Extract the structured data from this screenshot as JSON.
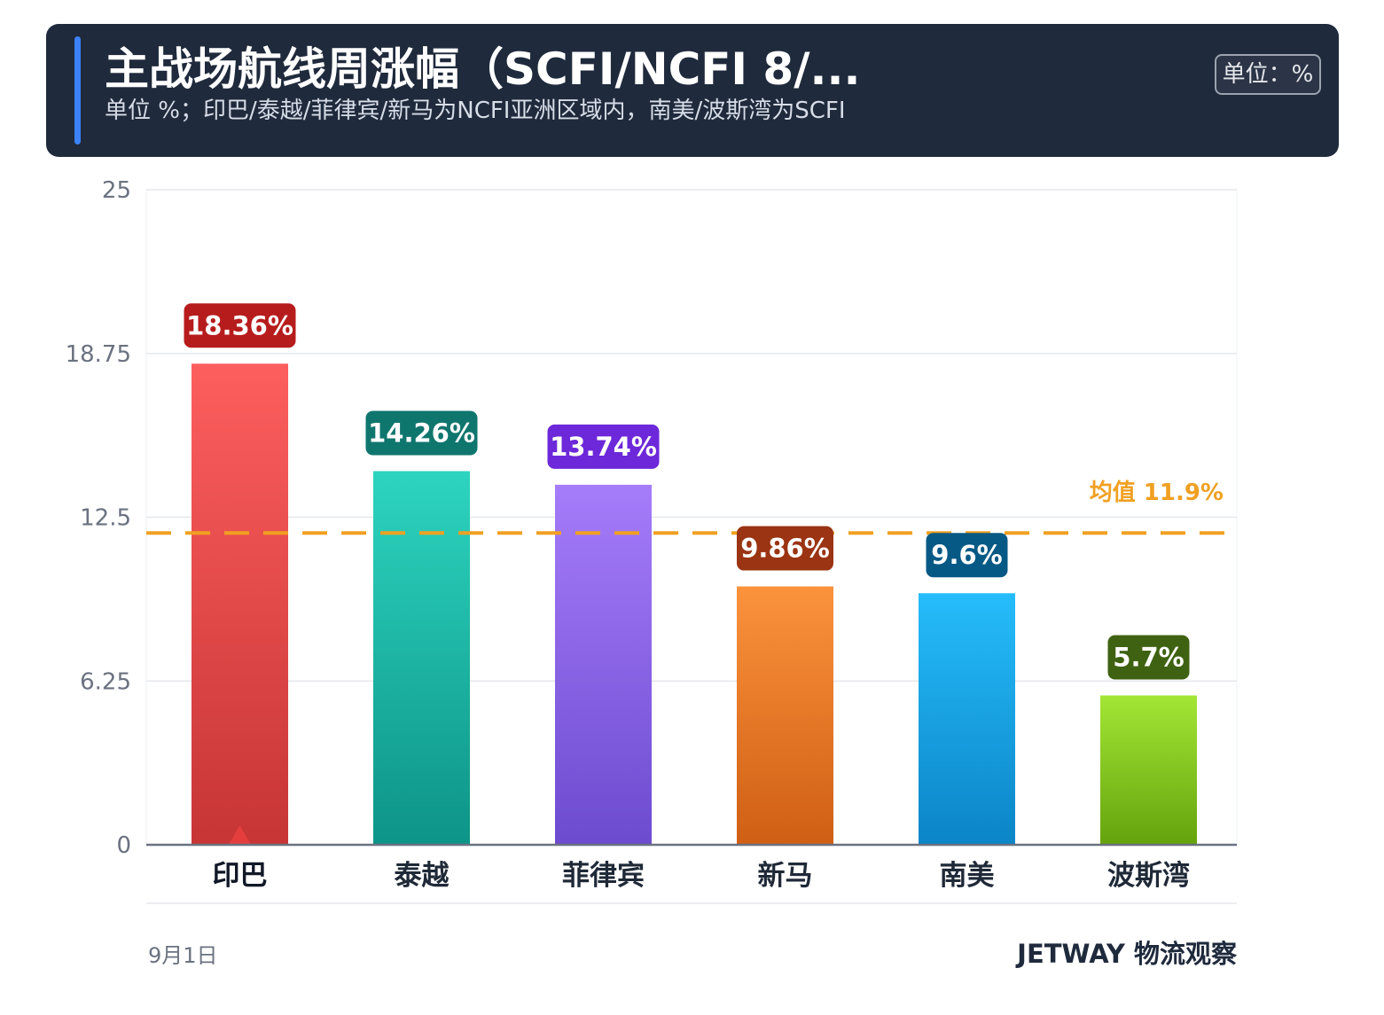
{
  "header": {
    "title": "主战场航线周涨幅（SCFI/NCFI 8/...",
    "subtitle": "单位 %；印巴/泰越/菲律宾/新马为NCFI亚洲区域内，南美/波斯湾为SCFI",
    "unit_badge": "单位：%"
  },
  "chart_data": {
    "type": "bar",
    "categories": [
      "印巴",
      "泰越",
      "菲律宾",
      "新马",
      "南美",
      "波斯湾"
    ],
    "values": [
      18.36,
      14.26,
      13.74,
      9.86,
      9.6,
      5.7
    ],
    "data_labels": [
      "18.36%",
      "14.26%",
      "13.74%",
      "9.86%",
      "9.6%",
      "5.7%"
    ],
    "ylim": [
      0,
      25
    ],
    "yticks": [
      0,
      6.25,
      12.5,
      18.75,
      25
    ],
    "ytick_labels": [
      "0",
      "6.25",
      "12.5",
      "18.75",
      "25"
    ],
    "grid": true,
    "mean_line": {
      "value": 11.9,
      "label": "均值 11.9%",
      "color": "#f0a022"
    },
    "highlight_category": "印巴",
    "bar_colors": [
      {
        "top": "#fd5e5e",
        "bottom": "#c73535",
        "label_bg": "#b71c1c"
      },
      {
        "top": "#2dd4bf",
        "bottom": "#0d9488",
        "label_bg": "#0f766e"
      },
      {
        "top": "#a57cfa",
        "bottom": "#6d4bcf",
        "label_bg": "#6d28d9"
      },
      {
        "top": "#fb923c",
        "bottom": "#cf5f14",
        "label_bg": "#9a3412"
      },
      {
        "top": "#26bcfb",
        "bottom": "#0b85c7",
        "label_bg": "#075985"
      },
      {
        "top": "#a3e635",
        "bottom": "#65a30d",
        "label_bg": "#3f6212"
      }
    ],
    "marker_color": "#e53e3e"
  },
  "footer": {
    "date": "9月1日",
    "brand": "JETWAY 物流观察"
  }
}
